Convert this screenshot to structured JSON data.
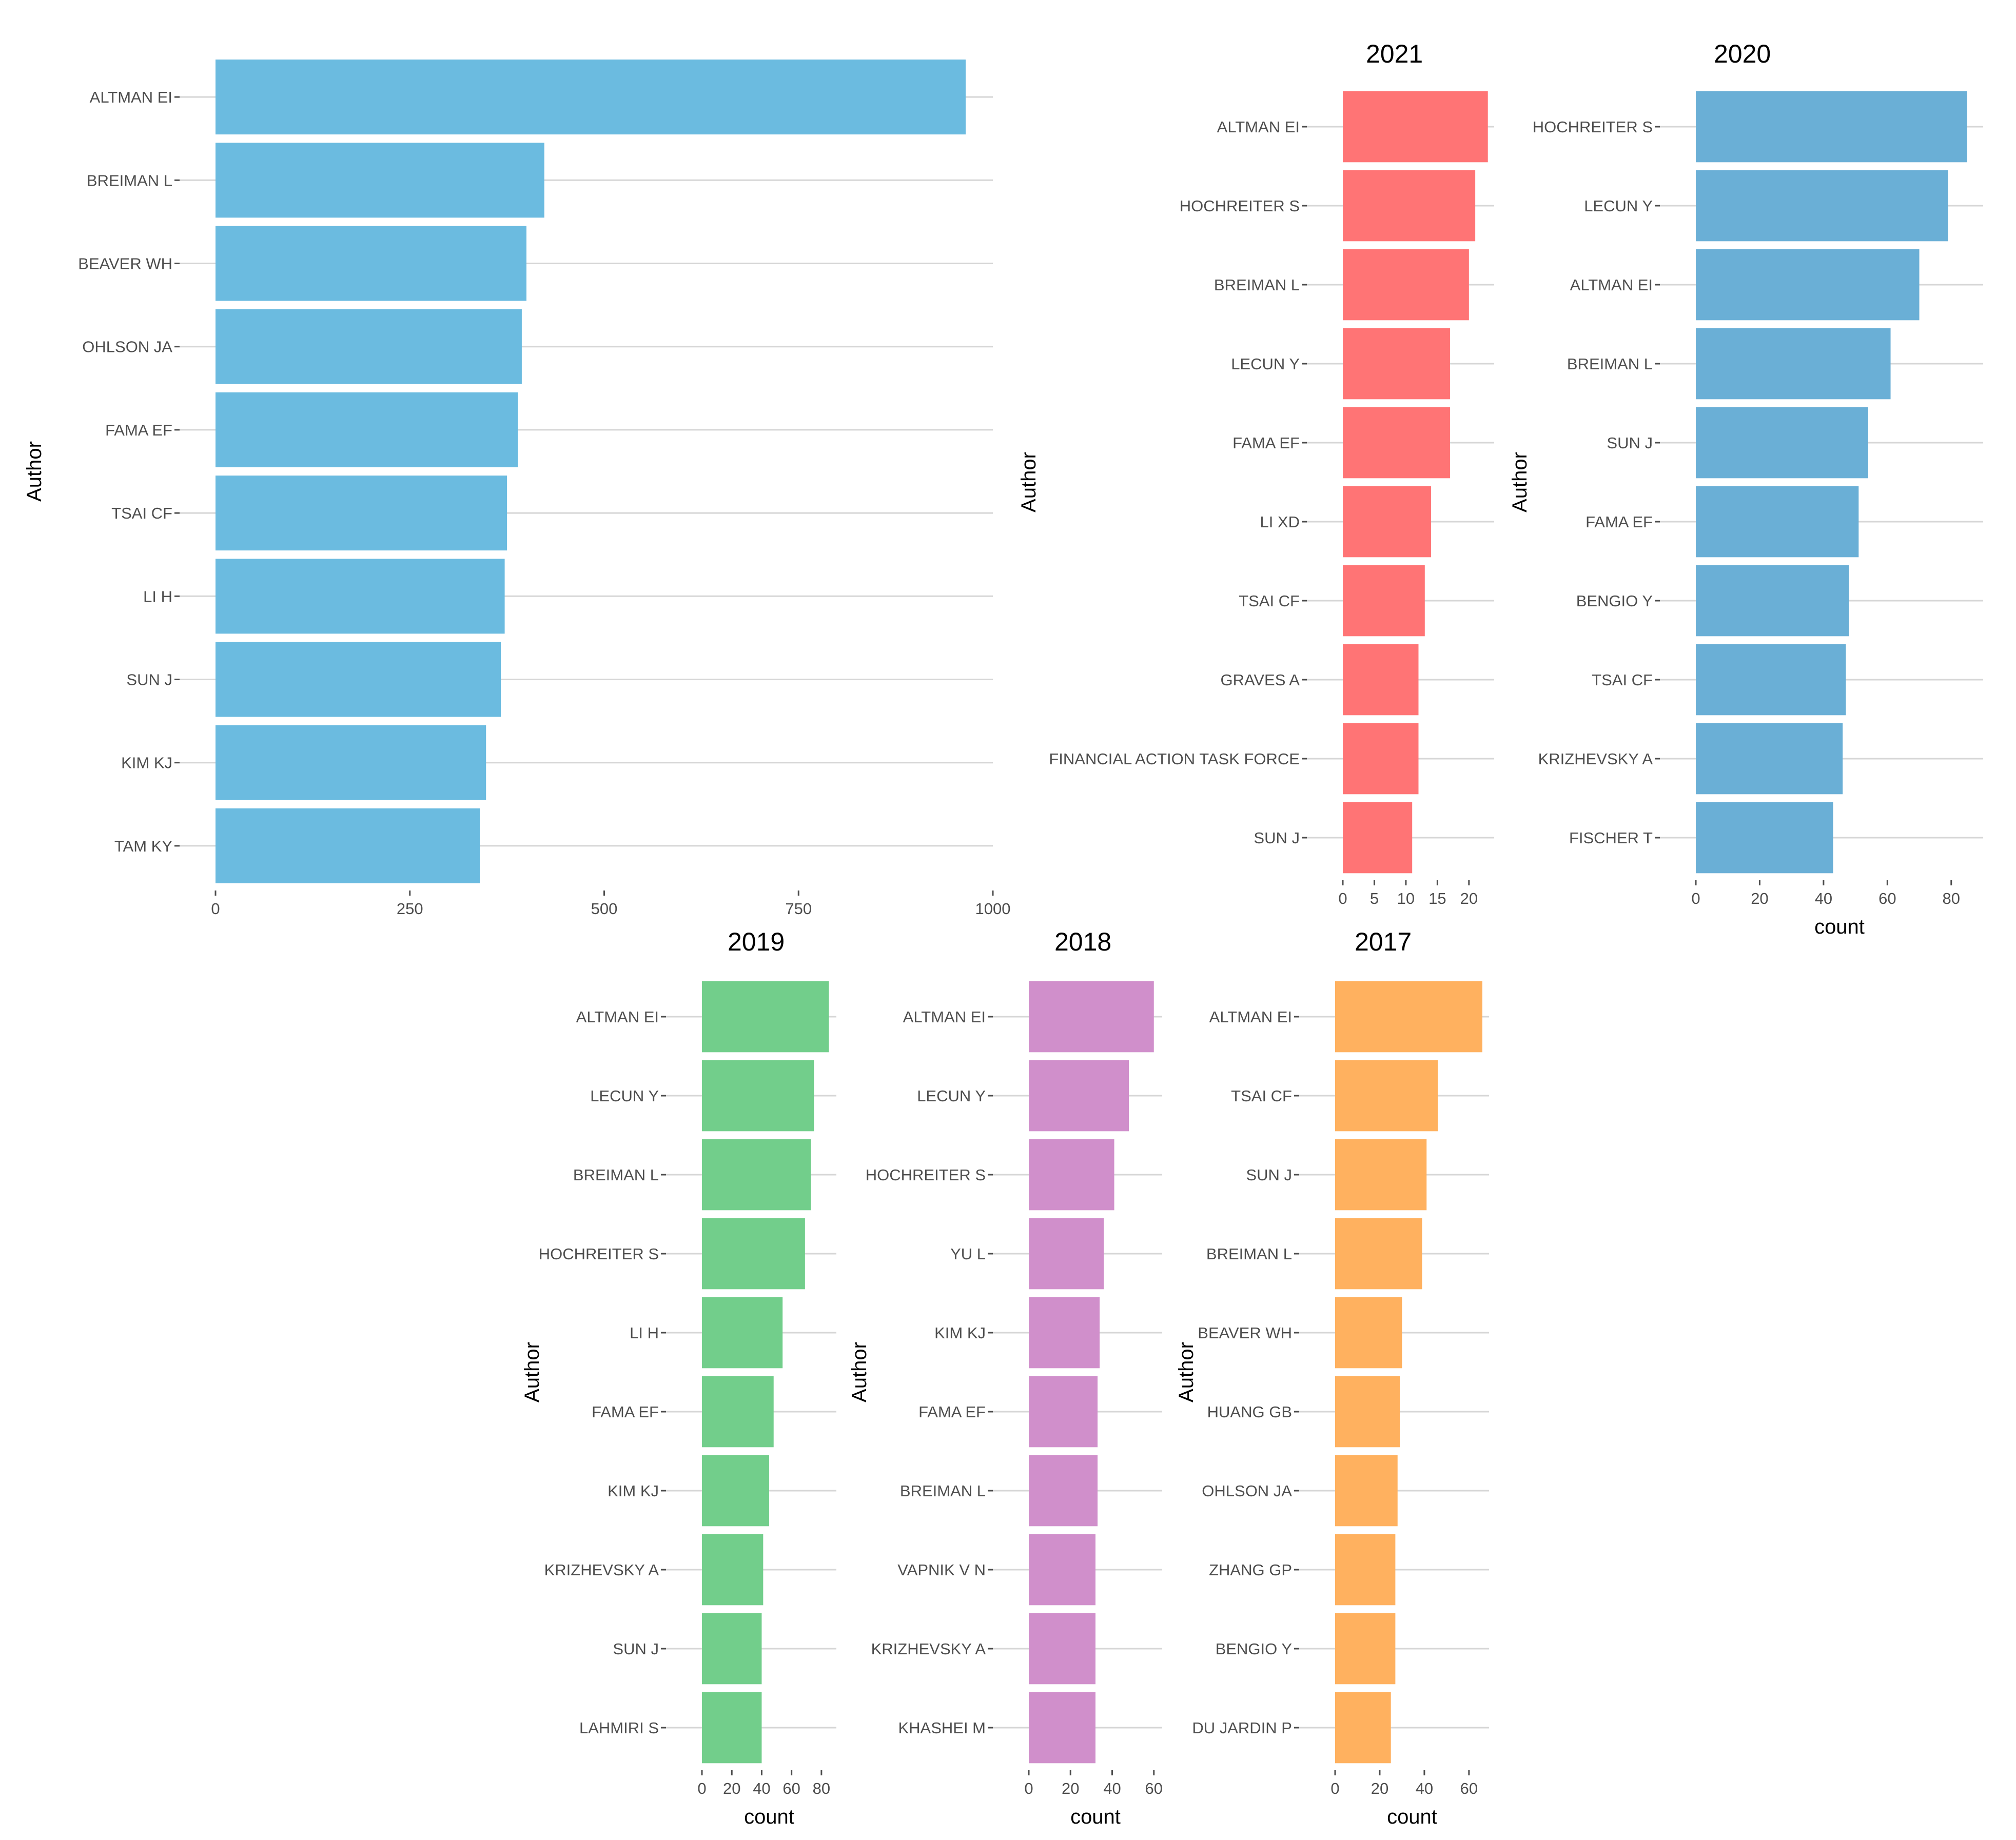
{
  "chart_data": [
    {
      "type": "bar",
      "orientation": "horizontal",
      "title": "",
      "xlabel": "",
      "ylabel": "Author",
      "color": "#6BBBE0",
      "xlim": [
        0,
        1000
      ],
      "xticks": [
        0,
        250,
        500,
        750,
        1000
      ],
      "categories": [
        "ALTMAN EI",
        "BREIMAN L",
        "BEAVER WH",
        "OHLSON JA",
        "FAMA EF",
        "TSAI CF",
        "LI H",
        "SUN J",
        "KIM KJ",
        "TAM KY"
      ],
      "values": [
        965,
        423,
        400,
        394,
        389,
        375,
        372,
        367,
        348,
        340
      ]
    },
    {
      "type": "bar",
      "orientation": "horizontal",
      "title": "2021",
      "xlabel": "",
      "ylabel": "Author",
      "color": "#FF7475",
      "xlim": [
        0,
        24
      ],
      "xticks": [
        0,
        5,
        10,
        15,
        20
      ],
      "categories": [
        "ALTMAN EI",
        "HOCHREITER S",
        "BREIMAN L",
        "LECUN Y",
        "FAMA EF",
        "LI XD",
        "TSAI CF",
        "GRAVES A",
        "FINANCIAL ACTION TASK FORCE",
        "SUN J"
      ],
      "values": [
        23,
        21,
        20,
        17,
        17,
        14,
        13,
        12,
        12,
        11
      ]
    },
    {
      "type": "bar",
      "orientation": "horizontal",
      "title": "2020",
      "xlabel": "count",
      "ylabel": "Author",
      "color": "#6AAFD6",
      "xlim": [
        0,
        90
      ],
      "xticks": [
        0,
        20,
        40,
        60,
        80
      ],
      "categories": [
        "HOCHREITER S",
        "LECUN Y",
        "ALTMAN EI",
        "BREIMAN L",
        "SUN J",
        "FAMA EF",
        "BENGIO Y",
        "TSAI CF",
        "KRIZHEVSKY A",
        "FISCHER T"
      ],
      "values": [
        85,
        79,
        70,
        61,
        54,
        51,
        48,
        47,
        46,
        43
      ]
    },
    {
      "type": "bar",
      "orientation": "horizontal",
      "title": "2019",
      "xlabel": "count",
      "ylabel": "Author",
      "color": "#72CE8B",
      "xlim": [
        0,
        90
      ],
      "xticks": [
        0,
        20,
        40,
        60,
        80
      ],
      "categories": [
        "ALTMAN EI",
        "LECUN Y",
        "BREIMAN L",
        "HOCHREITER S",
        "LI H",
        "FAMA EF",
        "KIM KJ",
        "KRIZHEVSKY A",
        "SUN J",
        "LAHMIRI S"
      ],
      "values": [
        85,
        75,
        73,
        69,
        54,
        48,
        45,
        41,
        40,
        40
      ]
    },
    {
      "type": "bar",
      "orientation": "horizontal",
      "title": "2018",
      "xlabel": "count",
      "ylabel": "Author",
      "color": "#D08FCB",
      "xlim": [
        0,
        64
      ],
      "xticks": [
        0,
        20,
        40,
        60
      ],
      "categories": [
        "ALTMAN EI",
        "LECUN Y",
        "HOCHREITER S",
        "YU L",
        "KIM KJ",
        "FAMA EF",
        "BREIMAN L",
        "VAPNIK V N",
        "KRIZHEVSKY A",
        "KHASHEI M"
      ],
      "values": [
        60,
        48,
        41,
        36,
        34,
        33,
        33,
        32,
        32,
        32
      ]
    },
    {
      "type": "bar",
      "orientation": "horizontal",
      "title": "2017",
      "xlabel": "count",
      "ylabel": "Author",
      "color": "#FFB15F",
      "xlim": [
        0,
        69
      ],
      "xticks": [
        0,
        20,
        40,
        60
      ],
      "categories": [
        "ALTMAN EI",
        "TSAI CF",
        "SUN J",
        "BREIMAN L",
        "BEAVER WH",
        "HUANG GB",
        "OHLSON JA",
        "ZHANG GP",
        "BENGIO Y",
        "DU JARDIN P"
      ],
      "values": [
        66,
        46,
        41,
        39,
        30,
        29,
        28,
        27,
        27,
        25
      ]
    }
  ]
}
